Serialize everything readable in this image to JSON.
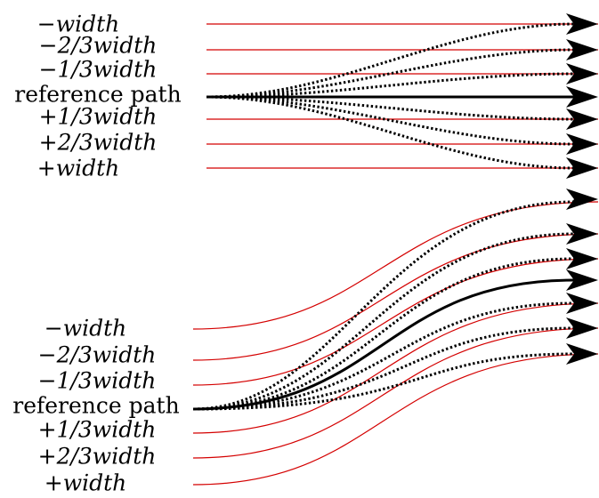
{
  "top_panel": {
    "labels": [
      "−width",
      "−2/3width",
      "−1/3width",
      "reference path",
      "+1/3width",
      "+2/3width",
      "+width"
    ]
  },
  "bottom_panel": {
    "labels": [
      "−width",
      "−2/3width",
      "−1/3width",
      "reference path",
      "+1/3width",
      "+2/3width",
      "+width"
    ]
  },
  "colors": {
    "offset_path": "#d40000",
    "fan_path": "#000000",
    "reference_path": "#000000"
  }
}
